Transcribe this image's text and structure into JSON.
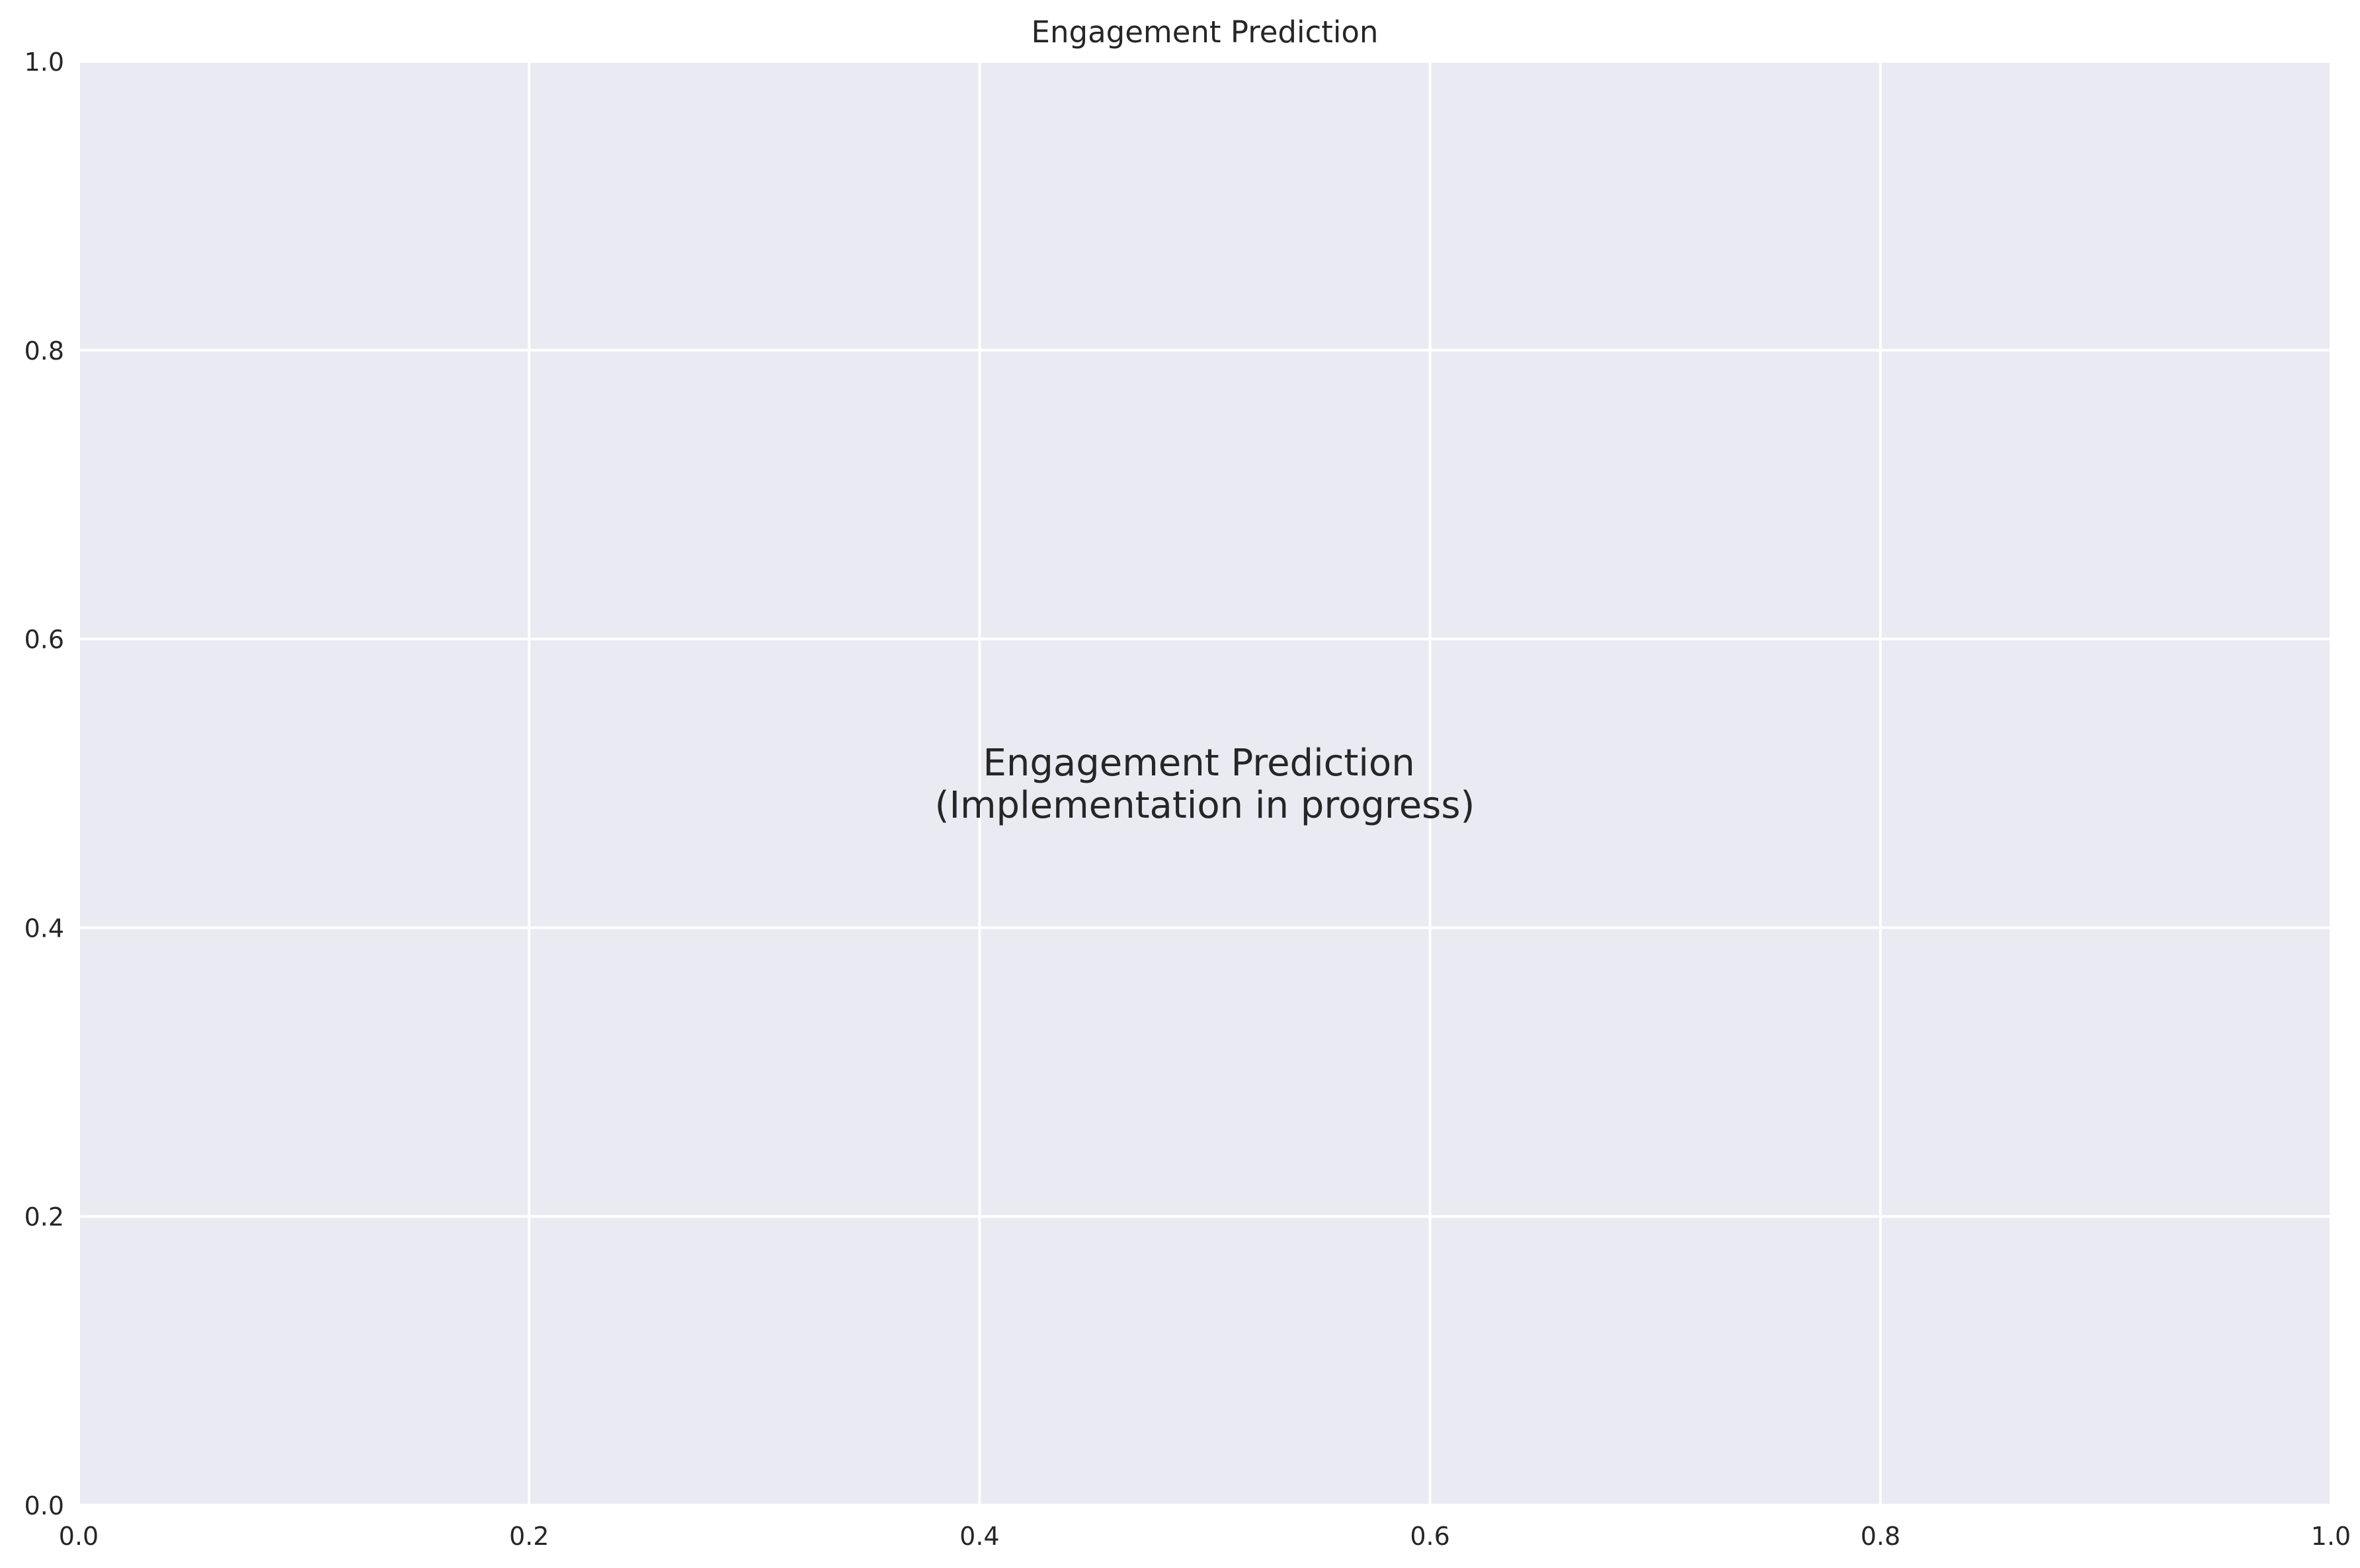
{
  "chart_data": {
    "type": "scatter",
    "title": "Engagement Prediction",
    "xlabel": "",
    "ylabel": "",
    "xlim": [
      0.0,
      1.0
    ],
    "ylim": [
      0.0,
      1.0
    ],
    "x_ticks": [
      "0.0",
      "0.2",
      "0.4",
      "0.6",
      "0.8",
      "1.0"
    ],
    "y_ticks": [
      "0.0",
      "0.2",
      "0.4",
      "0.6",
      "0.8",
      "1.0"
    ],
    "grid": true,
    "series": [],
    "annotation": {
      "lines": [
        "Engagement Prediction",
        "(Implementation in progress)"
      ],
      "x": 0.5,
      "y": 0.5
    },
    "colors": {
      "plot_background": "#eaeaf2",
      "grid": "#ffffff",
      "text": "#262626",
      "figure_background": "#ffffff"
    }
  }
}
